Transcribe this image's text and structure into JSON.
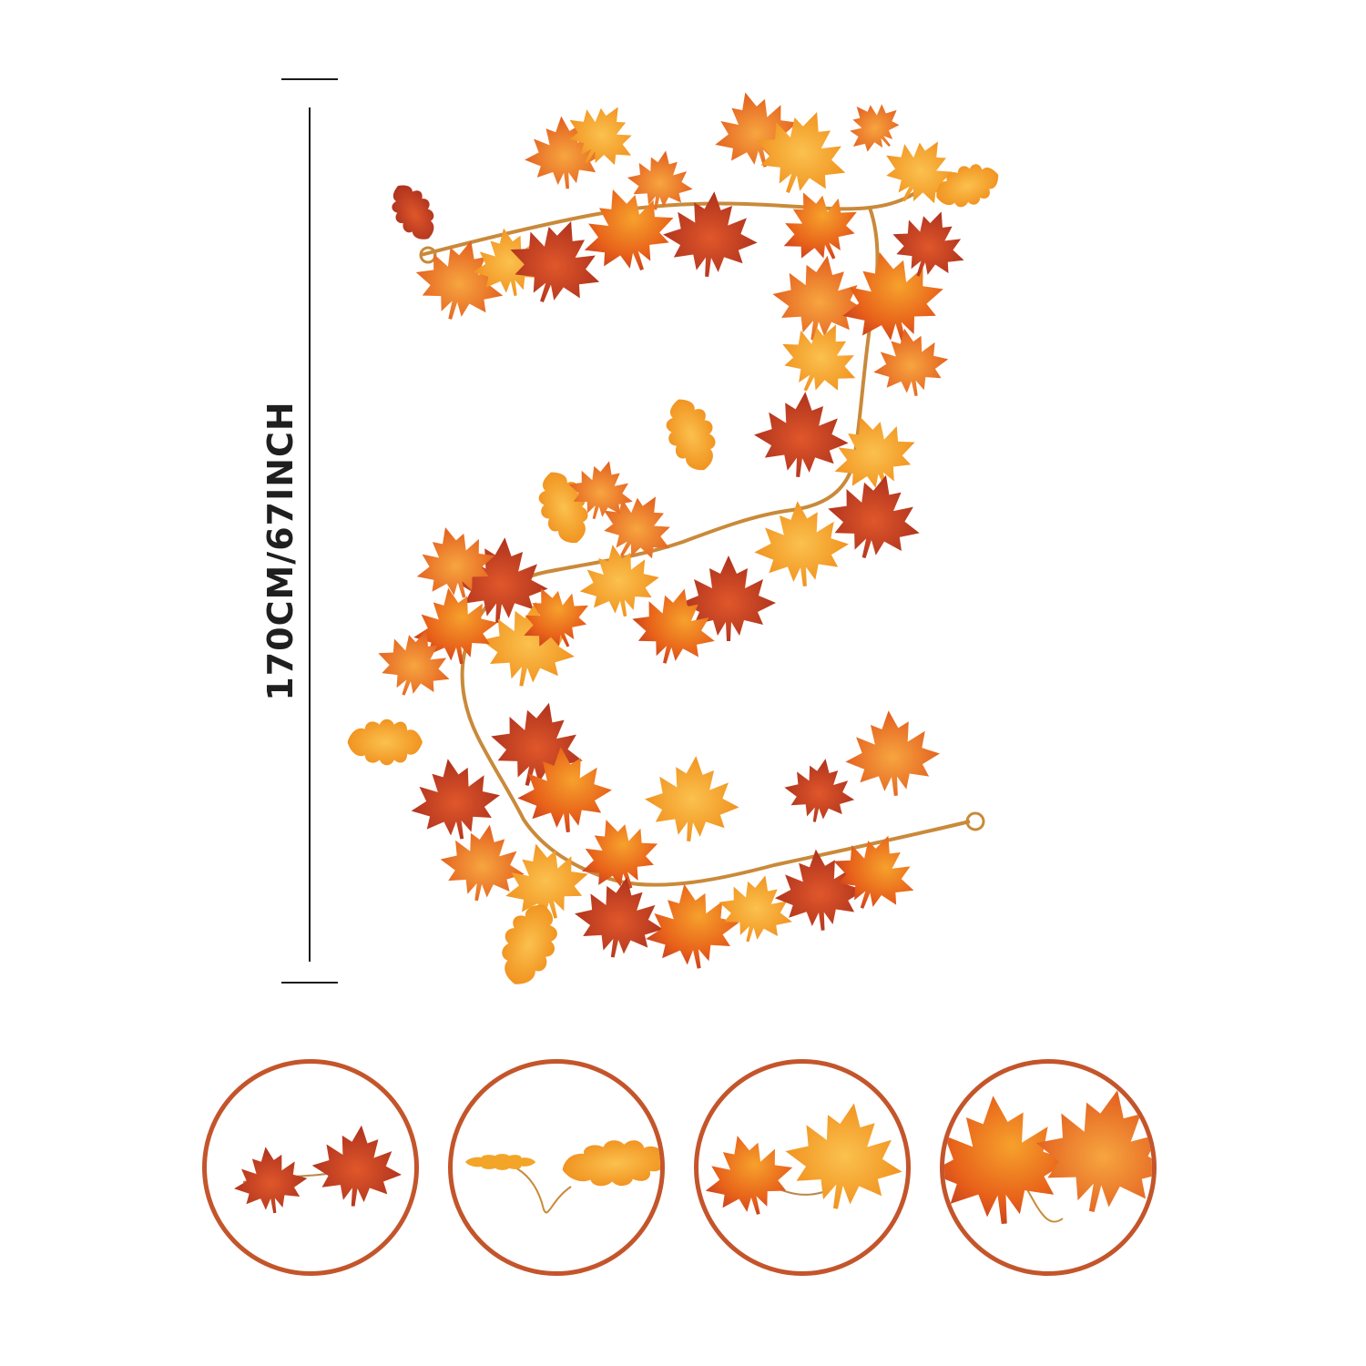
{
  "dimension": {
    "label": "170CM/67INCH"
  },
  "colors": {
    "ring": "#c4552b",
    "leaf_red": "#c23a1e",
    "leaf_orange": "#ea6a14",
    "leaf_amber": "#f39a1e",
    "leaf_gold": "#f7b53a",
    "stem": "#c98a3a",
    "line": "#1a1a1a"
  },
  "garland": {
    "icon": "autumn-maple-leaf-garland"
  },
  "details": [
    {
      "icon": "two-red-maple-leaves"
    },
    {
      "icon": "two-yellow-oak-leaves"
    },
    {
      "icon": "red-and-orange-maple-leaves"
    },
    {
      "icon": "orange-maple-leaves-closeup"
    }
  ]
}
